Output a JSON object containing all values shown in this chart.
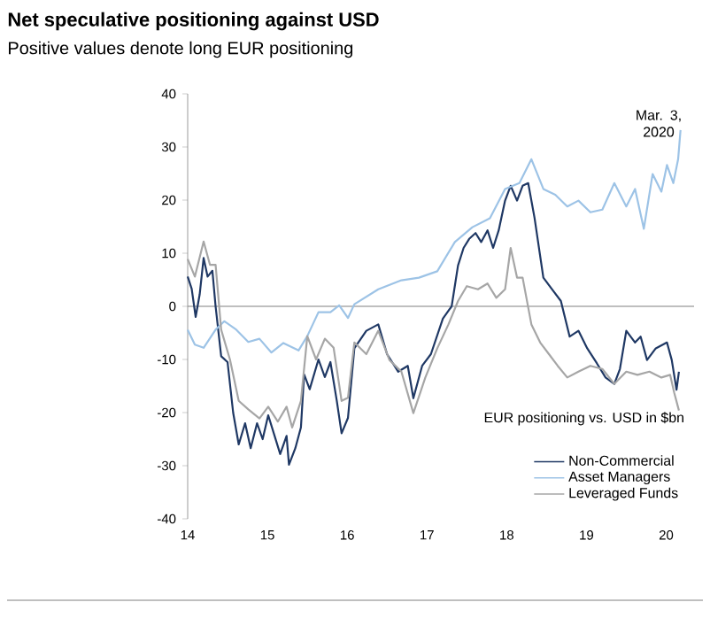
{
  "chart_data": {
    "type": "line",
    "title": "Net speculative positioning against USD",
    "subtitle": "Positive values denote long EUR positioning",
    "legend_title": "EUR positioning vs. USD in $bn",
    "legend": "bottom right",
    "annotations": [
      "Mar. 3, 2020"
    ],
    "xlim": [
      14,
      20.35
    ],
    "xticks": [
      14,
      15,
      16,
      17,
      18,
      19,
      20
    ],
    "ylim": [
      -40,
      40
    ],
    "yticks": [
      -40,
      -30,
      -20,
      -10,
      0,
      10,
      20,
      30,
      40
    ],
    "ref_lines": [
      {
        "axis": "y",
        "value": 0,
        "color": "#808080"
      }
    ],
    "series": [
      {
        "name": "Non-Commercial",
        "color": "#1f3864",
        "x": [
          14.0,
          14.05,
          14.1,
          14.15,
          14.2,
          14.25,
          14.31,
          14.35,
          14.42,
          14.5,
          14.57,
          14.64,
          14.72,
          14.79,
          14.87,
          14.94,
          15.01,
          15.09,
          15.16,
          15.24,
          15.27,
          15.35,
          15.42,
          15.46,
          15.53,
          15.64,
          15.72,
          15.79,
          15.87,
          15.93,
          16.01,
          16.09,
          16.24,
          16.39,
          16.5,
          16.64,
          16.76,
          16.83,
          16.94,
          17.05,
          17.2,
          17.31,
          17.39,
          17.46,
          17.53,
          17.61,
          17.68,
          17.76,
          17.83,
          17.9,
          17.98,
          18.05,
          18.13,
          18.2,
          18.27,
          18.35,
          18.46,
          18.57,
          18.68,
          18.79,
          18.9,
          19.01,
          19.13,
          19.24,
          19.35,
          19.42,
          19.5,
          19.61,
          19.68,
          19.76,
          19.87,
          20.01,
          20.07,
          20.13,
          20.16
        ],
        "values": [
          5.6,
          3.3,
          -2,
          2.2,
          9.1,
          5.6,
          6.7,
          0,
          -9.4,
          -10.5,
          -20,
          -26,
          -22,
          -26.7,
          -22,
          -25,
          -20.5,
          -24.4,
          -27.8,
          -24.4,
          -29.8,
          -26.7,
          -22.8,
          -12.8,
          -15.6,
          -10,
          -13.3,
          -10.5,
          -17.8,
          -23.9,
          -21,
          -7.9,
          -4.6,
          -3.4,
          -9,
          -12.3,
          -11.2,
          -17.3,
          -11.2,
          -9,
          -2.3,
          0,
          7.7,
          11,
          12.7,
          13.8,
          12.1,
          14.3,
          11,
          14.3,
          19.9,
          22.7,
          19.9,
          22.7,
          23.2,
          16.6,
          5.4,
          3.2,
          1,
          -5.7,
          -4.6,
          -7.9,
          -10.7,
          -13.4,
          -14.6,
          -11.8,
          -4.6,
          -6.8,
          -5.7,
          -10.1,
          -7.9,
          -6.8,
          -10.1,
          -15.7,
          -12.3
        ]
      },
      {
        "name": "Asset Managers",
        "color": "#9dc3e6",
        "x": [
          14.0,
          14.09,
          14.2,
          14.35,
          14.46,
          14.61,
          14.76,
          14.9,
          15.05,
          15.2,
          15.39,
          15.5,
          15.64,
          15.79,
          15.9,
          16.01,
          16.09,
          16.39,
          16.68,
          16.9,
          17.13,
          17.35,
          17.57,
          17.79,
          17.98,
          18.16,
          18.31,
          18.46,
          18.61,
          18.76,
          18.9,
          19.05,
          19.2,
          19.35,
          19.5,
          19.61,
          19.72,
          19.83,
          19.94,
          20.01,
          20.09,
          20.15,
          20.18
        ],
        "values": [
          -4.4,
          -7.2,
          -7.8,
          -4.4,
          -2.8,
          -4.4,
          -6.7,
          -6.1,
          -8.7,
          -6.9,
          -8.3,
          -5.6,
          -1.1,
          -1.1,
          0.2,
          -2.2,
          0.4,
          3.2,
          4.9,
          5.4,
          6.6,
          12.1,
          14.9,
          16.6,
          22.1,
          23.2,
          27.7,
          22.1,
          21,
          18.8,
          19.9,
          17.7,
          18.2,
          23.2,
          18.8,
          22.1,
          14.6,
          24.9,
          21.6,
          26.6,
          23.2,
          27.7,
          33.2
        ]
      },
      {
        "name": "Leveraged Funds",
        "color": "#a6a6a6",
        "x": [
          14.0,
          14.09,
          14.2,
          14.28,
          14.35,
          14.42,
          14.53,
          14.64,
          14.76,
          14.9,
          15.01,
          15.13,
          15.24,
          15.31,
          15.42,
          15.5,
          15.61,
          15.72,
          15.83,
          15.93,
          16.01,
          16.09,
          16.24,
          16.39,
          16.53,
          16.68,
          16.83,
          16.98,
          17.13,
          17.27,
          17.39,
          17.5,
          17.64,
          17.76,
          17.87,
          17.98,
          18.05,
          18.13,
          18.2,
          18.31,
          18.42,
          18.53,
          18.64,
          18.76,
          18.9,
          19.05,
          19.2,
          19.35,
          19.5,
          19.64,
          19.79,
          19.94,
          20.05,
          20.1,
          20.16
        ],
        "values": [
          8.9,
          5.6,
          12.2,
          7.8,
          7.8,
          -4.4,
          -10,
          -17.8,
          -19.4,
          -21.1,
          -18.9,
          -21.7,
          -18.9,
          -22.8,
          -17.8,
          -5.6,
          -10,
          -6.1,
          -7.8,
          -17.8,
          -17.2,
          -6.8,
          -9,
          -4.6,
          -10.1,
          -12.3,
          -20.1,
          -13.4,
          -7.9,
          -3.4,
          1,
          3.8,
          3.2,
          4.3,
          1.6,
          3.2,
          11,
          5.4,
          5.4,
          -3.4,
          -6.8,
          -9,
          -11.2,
          -13.4,
          -12.3,
          -11.2,
          -11.8,
          -14.6,
          -12.3,
          -12.9,
          -12.3,
          -13.4,
          -12.9,
          -16.2,
          -19.6
        ]
      }
    ]
  }
}
